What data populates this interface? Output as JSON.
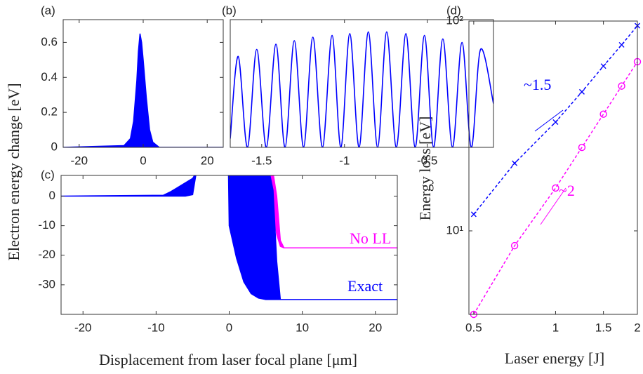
{
  "chart_data": [
    {
      "type": "area",
      "panel": "(a)",
      "x": [
        -25,
        -6,
        -4,
        -3,
        -2,
        -1.5,
        -1,
        -0.5,
        0,
        1,
        2,
        3,
        5,
        25
      ],
      "values": [
        0,
        0.01,
        0.05,
        0.15,
        0.38,
        0.55,
        0.65,
        0.6,
        0.5,
        0.28,
        0.1,
        0.03,
        0,
        0
      ],
      "color": "#0000ff",
      "xlim": [
        -25,
        25
      ],
      "ylim": [
        0,
        0.73
      ],
      "xticks": [
        -20,
        0,
        20
      ],
      "yticks": [
        0,
        0.2,
        0.4,
        0.6
      ]
    },
    {
      "type": "line",
      "panel": "(b)",
      "smooth": true,
      "x": [
        -1.69,
        -1.642,
        -1.586,
        -1.53,
        -1.472,
        -1.414,
        -1.359,
        -1.303,
        -1.247,
        -1.191,
        -1.133,
        -1.075,
        -1.022,
        -0.968,
        -0.912,
        -0.856,
        -0.8,
        -0.745,
        -0.687,
        -0.629,
        -0.573,
        -0.517,
        -0.462,
        -0.406,
        -0.348,
        -0.29,
        -0.234,
        -0.178,
        -0.1
      ],
      "values": [
        0.05,
        0.52,
        0,
        0.56,
        0,
        0.59,
        0,
        0.61,
        0,
        0.63,
        0,
        0.64,
        0,
        0.65,
        0,
        0.66,
        0,
        0.66,
        0,
        0.65,
        0,
        0.64,
        0,
        0.62,
        0,
        0.6,
        0,
        0.56,
        0.25
      ],
      "color": "#0000ff",
      "xlim": [
        -1.69,
        -0.1
      ],
      "ylim": [
        0,
        0.73
      ],
      "xticks": [
        -1.5,
        -1,
        -0.5
      ]
    },
    {
      "type": "band",
      "panel": "(c)",
      "xlabel": "Displacement from laser focal plane [μm]",
      "ylabel": "Electron energy change [eV]",
      "series": [
        {
          "name": "No LL",
          "color": "#ff00ff",
          "x": [
            5.5,
            6,
            6.5,
            7,
            7.5,
            10,
            23
          ],
          "upper": [
            8,
            8,
            0,
            -15,
            -17.5,
            -17.5,
            -17.5
          ],
          "lower": [
            8,
            -5,
            -13,
            -17,
            -17.5,
            -17.5,
            -17.5
          ]
        },
        {
          "name": "Exact",
          "color": "#0000ff",
          "x": [
            -23,
            -9,
            -8,
            -7,
            -6,
            -5,
            -4.5,
            -0.1,
            0,
            1,
            2,
            3,
            4,
            5,
            5.5,
            6,
            6.5,
            7,
            10,
            23
          ],
          "upper": [
            0,
            0.3,
            1.5,
            3,
            4.5,
            6,
            8,
            8,
            8,
            8,
            8,
            8,
            8,
            8,
            8,
            2,
            -22,
            -35,
            -35,
            -35
          ],
          "lower": [
            0,
            0,
            0,
            0,
            0,
            0.5,
            8,
            8,
            -10,
            -21,
            -29,
            -33,
            -34.5,
            -35,
            -35,
            -35,
            -35,
            -35,
            -35,
            -35
          ]
        }
      ],
      "xlim": [
        -23,
        23
      ],
      "ylim": [
        -40,
        7
      ],
      "xticks": [
        -20,
        -10,
        0,
        10,
        20
      ],
      "yticks": [
        0,
        -10,
        -20,
        -30
      ]
    },
    {
      "type": "line",
      "panel": "(d)",
      "xlabel": "Laser energy [J]",
      "ylabel": "Energy loss [eV]",
      "xlog": true,
      "ylog": true,
      "series": [
        {
          "color": "#0000ff",
          "marker": "x",
          "slope_label": "~1.5",
          "x": [
            0.5,
            0.707,
            1,
            1.25,
            1.5,
            1.75,
            2
          ],
          "values": [
            12,
            21,
            33,
            46,
            61,
            77,
            95
          ]
        },
        {
          "color": "#ff00ff",
          "marker": "o",
          "slope_label": "~2",
          "x": [
            0.5,
            0.707,
            1,
            1.25,
            1.5,
            1.75,
            2
          ],
          "values": [
            4,
            8.5,
            16,
            25,
            36,
            49,
            64
          ]
        }
      ],
      "xlim": [
        0.48,
        2
      ],
      "ylim": [
        4,
        100
      ],
      "xticks": [
        0.5,
        1,
        1.5,
        2
      ],
      "yticks": [
        {
          "value": 10,
          "label": "10¹"
        },
        {
          "value": 100,
          "label": "10²"
        }
      ]
    }
  ]
}
